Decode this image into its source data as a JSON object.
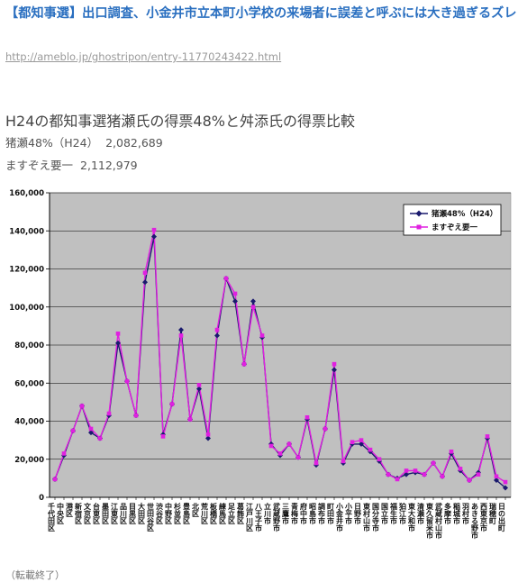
{
  "post": {
    "title": "【都知事選】出口調査、小金井市立本町小学校の来場者に誤差と呼ぶには大き過ぎるズレ",
    "url": "http://ameblo.jp/ghostripon/entry-11770243422.html"
  },
  "heading": "H24の都知事選猪瀬氏の得票48%と舛添氏の得票比較",
  "stats": [
    {
      "label": "猪瀬48%（H24）",
      "value": "2,082,689"
    },
    {
      "label": "ますぞえ要一",
      "value": "2,112,979"
    }
  ],
  "footer": "（転載終了）",
  "colors": {
    "series1": "#1a1a6e",
    "series2": "#e020e0",
    "plot_bg": "#c0c0c0",
    "axis": "#000000"
  },
  "chart_data": {
    "type": "line",
    "ylim": [
      0,
      160000
    ],
    "yticks": [
      "0",
      "20,000",
      "40,000",
      "60,000",
      "80,000",
      "100,000",
      "120,000",
      "140,000",
      "160,000"
    ],
    "grid": "horizontal",
    "legend_position": "top-right",
    "categories": [
      "千代田区",
      "中央区",
      "港区",
      "新宿区",
      "文京区",
      "台東区",
      "墨田区",
      "江東区",
      "品川区",
      "目黒区",
      "大田区",
      "世田谷区",
      "渋谷区",
      "中野区",
      "杉並区",
      "豊島区",
      "北区",
      "荒川区",
      "板橋区",
      "練馬区",
      "足立区",
      "葛飾区",
      "江戸川区",
      "八王子市",
      "立川市",
      "武蔵野市",
      "三鷹市",
      "青梅市",
      "府中市",
      "昭島市",
      "調布市",
      "町田市",
      "小金井市",
      "小平市",
      "日野市",
      "東村山市",
      "国分寺市",
      "国立市",
      "福生市",
      "狛江市",
      "東大和市",
      "清瀬市",
      "東久留米市",
      "武蔵村山市",
      "多摩市",
      "稲城市",
      "羽村市",
      "あきる野市",
      "西東京市",
      "瑞穂町",
      "日の出町"
    ],
    "series": [
      {
        "name": "猪瀬48%（H24）",
        "values": [
          9500,
          22000,
          35000,
          48000,
          34000,
          31000,
          43000,
          81000,
          61000,
          43000,
          113000,
          137000,
          33000,
          49000,
          88000,
          41000,
          57000,
          31000,
          85000,
          115000,
          103000,
          70000,
          103000,
          84000,
          28000,
          22000,
          28000,
          21000,
          41000,
          17000,
          36000,
          67000,
          18000,
          28000,
          28000,
          24000,
          19000,
          12000,
          10000,
          12000,
          13000,
          12000,
          18000,
          11000,
          23000,
          14000,
          9000,
          13000,
          31000,
          9000,
          5000
        ]
      },
      {
        "name": "ますぞえ要一",
        "values": [
          9500,
          23000,
          35000,
          48000,
          36000,
          31000,
          44000,
          86000,
          61000,
          43000,
          118000,
          140500,
          32000,
          49000,
          85000,
          41000,
          59000,
          33000,
          88000,
          115000,
          107000,
          70000,
          100000,
          85000,
          27000,
          23000,
          28000,
          21000,
          42000,
          18000,
          36000,
          70000,
          19000,
          29000,
          30000,
          25000,
          20000,
          12000,
          9500,
          14000,
          14000,
          12000,
          18000,
          11000,
          24000,
          15000,
          9000,
          12000,
          32000,
          11000,
          8000
        ]
      }
    ]
  }
}
